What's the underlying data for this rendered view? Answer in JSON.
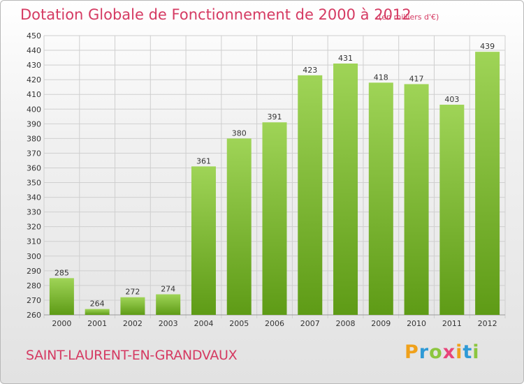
{
  "header": {
    "title": "Dotation Globale de Fonctionnement de 2000 à 2012",
    "unit": "(en milliers d'€)"
  },
  "footer": {
    "commune": "SAINT-LAURENT-EN-GRANDVAUX",
    "logo_letters": [
      "P",
      "r",
      "o",
      "x",
      "i",
      "t",
      "i"
    ],
    "logo_colors": [
      "#f0a11b",
      "#2f9ad6",
      "#8cc63f",
      "#e8447a",
      "#f0a11b",
      "#2f9ad6",
      "#8cc63f"
    ]
  },
  "colors": {
    "bar_light": "#9fd457",
    "bar_dark": "#5e9b16",
    "grid": "#cfcfcf",
    "axis_text": "#333333",
    "accent": "#d53a62"
  },
  "chart_data": {
    "type": "bar",
    "title": "Dotation Globale de Fonctionnement de 2000 à 2012",
    "subtitle": "(en milliers d'€)",
    "categories": [
      "2000",
      "2001",
      "2002",
      "2003",
      "2004",
      "2005",
      "2006",
      "2007",
      "2008",
      "2009",
      "2010",
      "2011",
      "2012"
    ],
    "values": [
      285,
      264,
      272,
      274,
      361,
      380,
      391,
      423,
      431,
      418,
      417,
      403,
      439
    ],
    "data_labels": [
      "285",
      "264",
      "272",
      "274",
      "361",
      "380",
      "391",
      "423",
      "431",
      "418",
      "417",
      "403",
      "439"
    ],
    "ylim": [
      260,
      450
    ],
    "ytick_step": 10,
    "yticks": [
      "260",
      "270",
      "280",
      "290",
      "300",
      "310",
      "320",
      "330",
      "340",
      "350",
      "360",
      "370",
      "380",
      "390",
      "400",
      "410",
      "420",
      "430",
      "440",
      "450"
    ],
    "grid": true,
    "legend": "none"
  }
}
